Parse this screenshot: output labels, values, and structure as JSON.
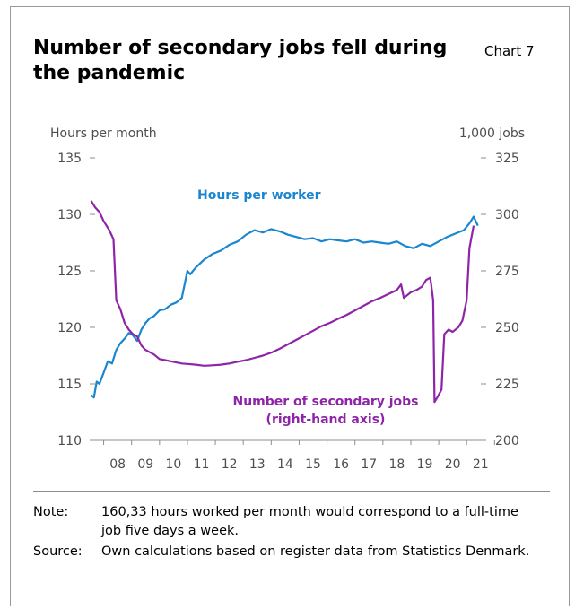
{
  "header": {
    "title": "Number of secondary jobs fell during the pandemic",
    "chart_number": "Chart 7"
  },
  "footer": {
    "note_label": "Note:",
    "note_text": "160,33 hours worked per month would correspond to a full-time job five days a week.",
    "source_label": "Source:",
    "source_text": "Own calculations based on register data from Statistics Denmark."
  },
  "colors": {
    "hours": "#1a86d0",
    "jobs": "#8e24a8",
    "axis": "#8c8c8c"
  },
  "chart_data": {
    "type": "line",
    "x_ticks": [
      "08",
      "09",
      "10",
      "11",
      "12",
      "13",
      "14",
      "15",
      "16",
      "17",
      "18",
      "19",
      "20",
      "21"
    ],
    "left_axis": {
      "label": "Hours per month",
      "range": [
        110,
        135
      ],
      "ticks": [
        110,
        115,
        120,
        125,
        130,
        135
      ]
    },
    "right_axis": {
      "label": "1,000 jobs",
      "range": [
        200,
        325
      ],
      "ticks": [
        200,
        225,
        250,
        275,
        300,
        325
      ]
    },
    "x_range": [
      2007.5,
      2021.7
    ],
    "grid": false,
    "series": [
      {
        "name": "Hours per worker",
        "axis": "left",
        "x": [
          2007.55,
          2007.65,
          2007.75,
          2007.85,
          2008.0,
          2008.15,
          2008.3,
          2008.45,
          2008.6,
          2008.75,
          2008.9,
          2009.05,
          2009.2,
          2009.35,
          2009.5,
          2009.65,
          2009.8,
          2010.0,
          2010.2,
          2010.4,
          2010.6,
          2010.8,
          2011.0,
          2011.1,
          2011.3,
          2011.6,
          2011.9,
          2012.2,
          2012.5,
          2012.8,
          2013.1,
          2013.4,
          2013.7,
          2014.0,
          2014.3,
          2014.6,
          2014.9,
          2015.2,
          2015.5,
          2015.8,
          2016.1,
          2016.4,
          2016.7,
          2017.0,
          2017.3,
          2017.6,
          2017.9,
          2018.2,
          2018.5,
          2018.8,
          2019.1,
          2019.4,
          2019.7,
          2020.0,
          2020.3,
          2020.6,
          2020.9,
          2021.1,
          2021.25,
          2021.4
        ],
        "y": [
          114.0,
          113.8,
          115.2,
          115.0,
          116.0,
          117.0,
          116.8,
          118.0,
          118.6,
          119.0,
          119.5,
          119.3,
          118.8,
          119.8,
          120.4,
          120.8,
          121.0,
          121.5,
          121.6,
          122.0,
          122.2,
          122.6,
          125.0,
          124.7,
          125.3,
          126.0,
          126.5,
          126.8,
          127.3,
          127.6,
          128.2,
          128.6,
          128.4,
          128.7,
          128.5,
          128.2,
          128.0,
          127.8,
          127.9,
          127.6,
          127.8,
          127.7,
          127.6,
          127.8,
          127.5,
          127.6,
          127.5,
          127.4,
          127.6,
          127.2,
          127.0,
          127.4,
          127.2,
          127.6,
          128.0,
          128.3,
          128.6,
          129.2,
          129.8,
          129.0
        ]
      },
      {
        "name": "Number of secondary jobs (right-hand axis)",
        "axis": "right",
        "x": [
          2007.55,
          2007.7,
          2007.85,
          2008.0,
          2008.2,
          2008.35,
          2008.45,
          2008.6,
          2008.75,
          2008.9,
          2009.05,
          2009.2,
          2009.35,
          2009.5,
          2009.65,
          2009.8,
          2010.0,
          2010.2,
          2010.4,
          2010.6,
          2010.8,
          2011.0,
          2011.3,
          2011.6,
          2011.9,
          2012.2,
          2012.5,
          2012.8,
          2013.1,
          2013.4,
          2013.7,
          2014.0,
          2014.3,
          2014.6,
          2014.9,
          2015.2,
          2015.5,
          2015.8,
          2016.1,
          2016.4,
          2016.7,
          2017.0,
          2017.3,
          2017.6,
          2017.9,
          2018.2,
          2018.5,
          2018.65,
          2018.75,
          2019.0,
          2019.2,
          2019.4,
          2019.55,
          2019.7,
          2019.8,
          2019.85,
          2019.95,
          2020.1,
          2020.2,
          2020.35,
          2020.5,
          2020.7,
          2020.85,
          2021.0,
          2021.1,
          2021.25
        ],
        "y": [
          306.0,
          303.0,
          301.0,
          297.0,
          293.0,
          289.0,
          262.0,
          258.0,
          252.0,
          249.0,
          247.0,
          246.0,
          242.0,
          240.0,
          239.0,
          238.0,
          236.0,
          235.5,
          235.0,
          234.5,
          234.0,
          233.8,
          233.5,
          233.0,
          233.2,
          233.5,
          234.0,
          234.8,
          235.5,
          236.5,
          237.5,
          238.8,
          240.5,
          242.5,
          244.5,
          246.5,
          248.5,
          250.5,
          252.0,
          253.8,
          255.5,
          257.5,
          259.5,
          261.5,
          263.0,
          264.8,
          266.5,
          269.0,
          263.0,
          265.5,
          266.5,
          268.0,
          271.0,
          272.0,
          262.0,
          217.0,
          219.0,
          222.5,
          247.0,
          249.0,
          248.0,
          250.0,
          253.0,
          262.0,
          285.0,
          295.0
        ]
      }
    ]
  }
}
